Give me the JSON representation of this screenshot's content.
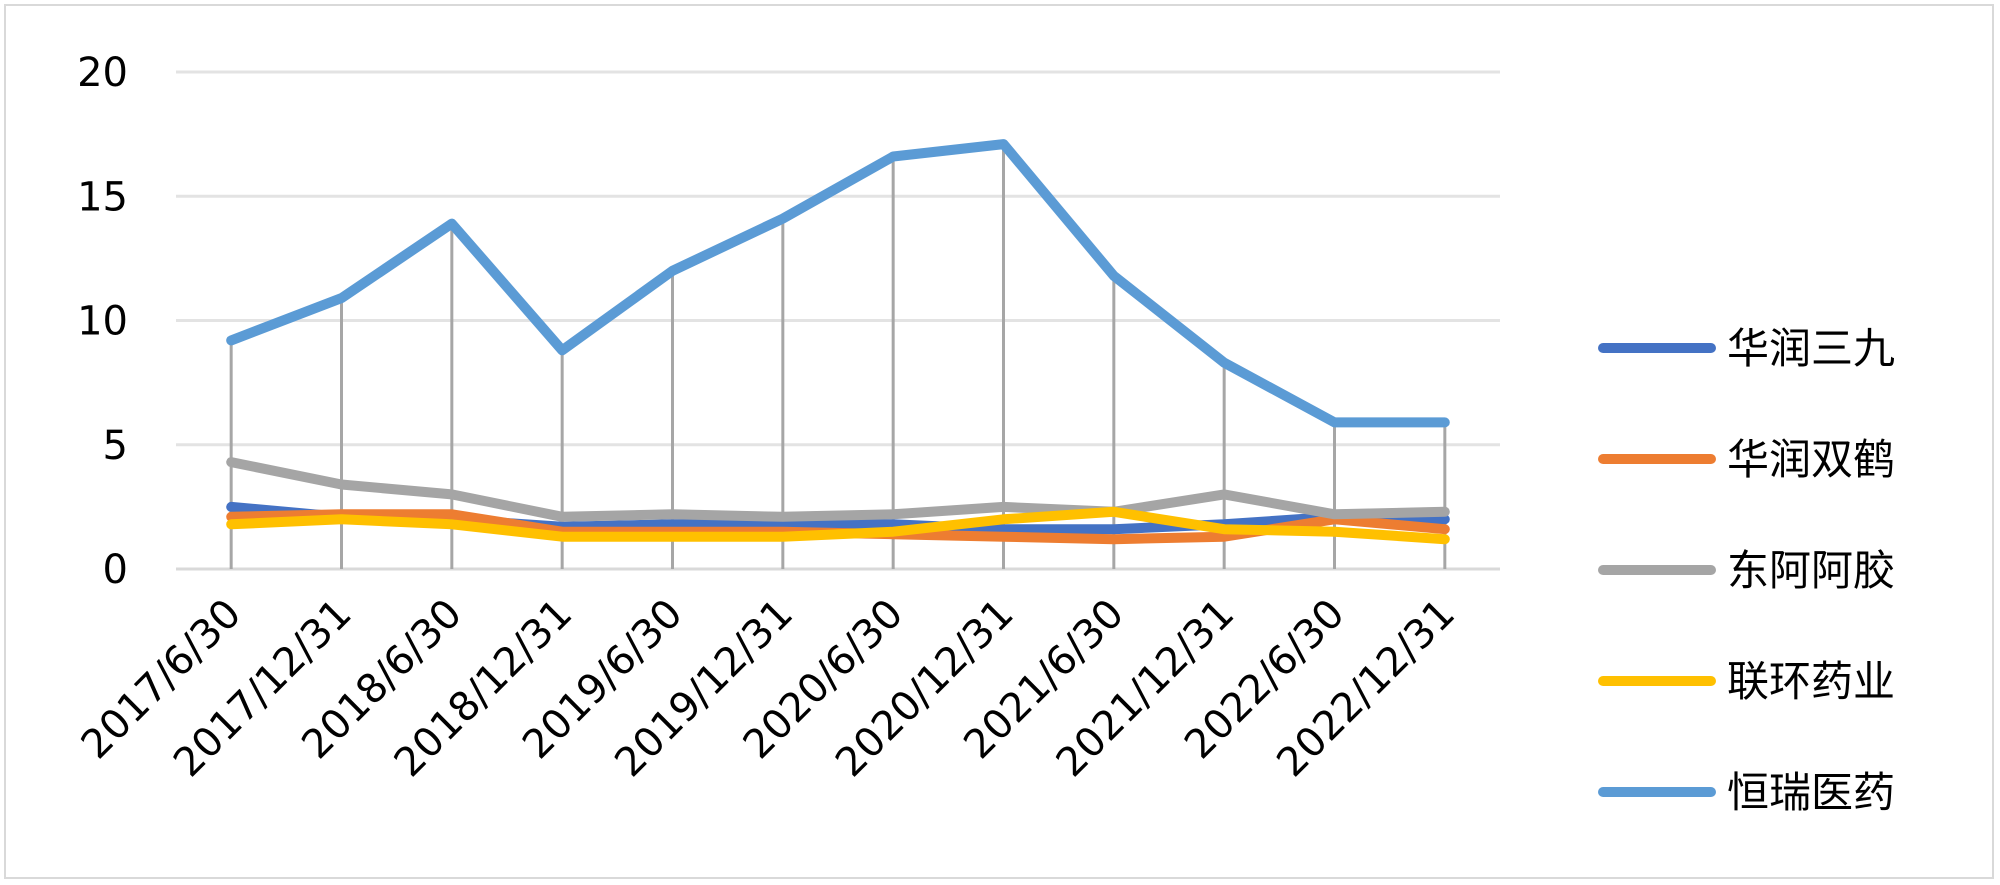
{
  "chart_data": {
    "type": "line",
    "title": "",
    "xlabel": "",
    "ylabel": "",
    "ylim": [
      0,
      20
    ],
    "yticks": [
      0,
      5,
      10,
      15,
      20
    ],
    "grid": true,
    "legend_position": "right",
    "categories": [
      "2017/6/30",
      "2017/12/31",
      "2018/6/30",
      "2018/12/31",
      "2019/6/30",
      "2019/12/31",
      "2020/6/30",
      "2020/12/31",
      "2021/6/30",
      "2021/12/31",
      "2022/6/30",
      "2022/12/31"
    ],
    "series": [
      {
        "name": "华润三九",
        "color": "#4472C4",
        "values": [
          2.5,
          2.1,
          2.0,
          1.7,
          1.8,
          1.8,
          1.8,
          1.6,
          1.6,
          1.8,
          2.1,
          2.0
        ]
      },
      {
        "name": "华润双鹤",
        "color": "#ED7D31",
        "values": [
          2.1,
          2.2,
          2.2,
          1.5,
          1.5,
          1.5,
          1.4,
          1.3,
          1.2,
          1.3,
          2.0,
          1.6
        ]
      },
      {
        "name": "东阿阿胶",
        "color": "#A5A5A5",
        "values": [
          4.3,
          3.4,
          3.0,
          2.1,
          2.2,
          2.1,
          2.2,
          2.5,
          2.3,
          3.0,
          2.2,
          2.3
        ]
      },
      {
        "name": "联环药业",
        "color": "#FFC000",
        "values": [
          1.8,
          2.0,
          1.8,
          1.3,
          1.3,
          1.3,
          1.5,
          2.0,
          2.3,
          1.6,
          1.5,
          1.2
        ]
      },
      {
        "name": "恒瑞医药",
        "color": "#5B9BD5",
        "values": [
          9.2,
          10.9,
          13.9,
          8.8,
          12.0,
          14.1,
          16.6,
          17.1,
          11.8,
          8.3,
          5.9,
          5.9
        ]
      }
    ]
  }
}
